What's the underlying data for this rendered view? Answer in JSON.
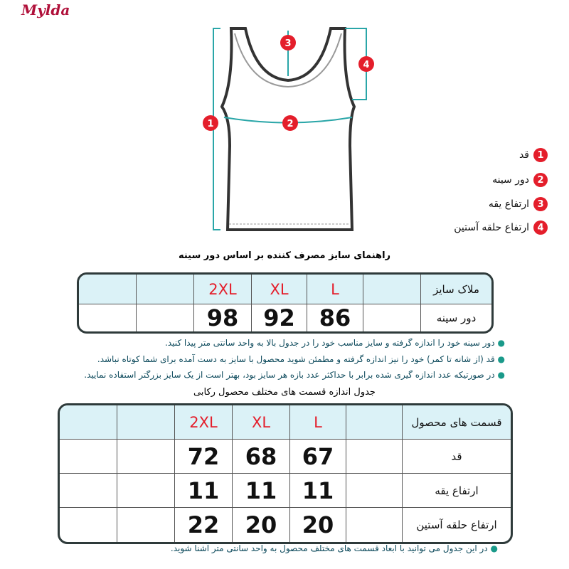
{
  "logo": "Mylda",
  "legend": [
    {
      "n": "1",
      "label": "قد"
    },
    {
      "n": "2",
      "label": "دور سینه"
    },
    {
      "n": "3",
      "label": "ارتفاع یقه"
    },
    {
      "n": "4",
      "label": "ارتفاع حلقه آستین"
    }
  ],
  "table1": {
    "title": "راهنمای سایز مصرف کننده بر اساس دور سینه",
    "header": {
      "label": "ملاک سایز",
      "sizes": [
        "L",
        "XL",
        "2XL"
      ]
    },
    "row": {
      "label": "دور سینه",
      "values": [
        "86",
        "92",
        "98"
      ]
    }
  },
  "notes1": [
    "دور سینه خود را اندازه گرفته و سایز مناسب خود را در جدول بالا به واحد سانتی متر پیدا کنید.",
    "قد (از شانه تا کمر) خود را نیز اندازه گرفته و مطمئن شوید محصول با سایز به دست آمده برای شما کوتاه نباشد.",
    "در صورتیکه عدد اندازه گیری شده برابر با حداکثر عدد بازه هر سایز بود، بهتر است از یک سایز بزرگتر استفاده نمایید."
  ],
  "table2": {
    "title": "جدول اندازه قسمت های مختلف محصول رکابی",
    "header": {
      "label": "قسمت های محصول",
      "sizes": [
        "L",
        "XL",
        "2XL"
      ]
    },
    "rows": [
      {
        "label": "قد",
        "values": [
          "67",
          "68",
          "72"
        ]
      },
      {
        "label": "ارتفاع یقه",
        "values": [
          "11",
          "11",
          "11"
        ]
      },
      {
        "label": "ارتفاع حلقه آستین",
        "values": [
          "20",
          "20",
          "22"
        ]
      }
    ]
  },
  "notes2": [
    "در این جدول می توانید با ابعاد قسمت های مختلف محصول به واحد سانتی متر آشنا شوید."
  ],
  "colors": {
    "accent": "#e41e2b",
    "header_bg": "#dbf2f7",
    "measure_line": "#2aa6a8"
  }
}
